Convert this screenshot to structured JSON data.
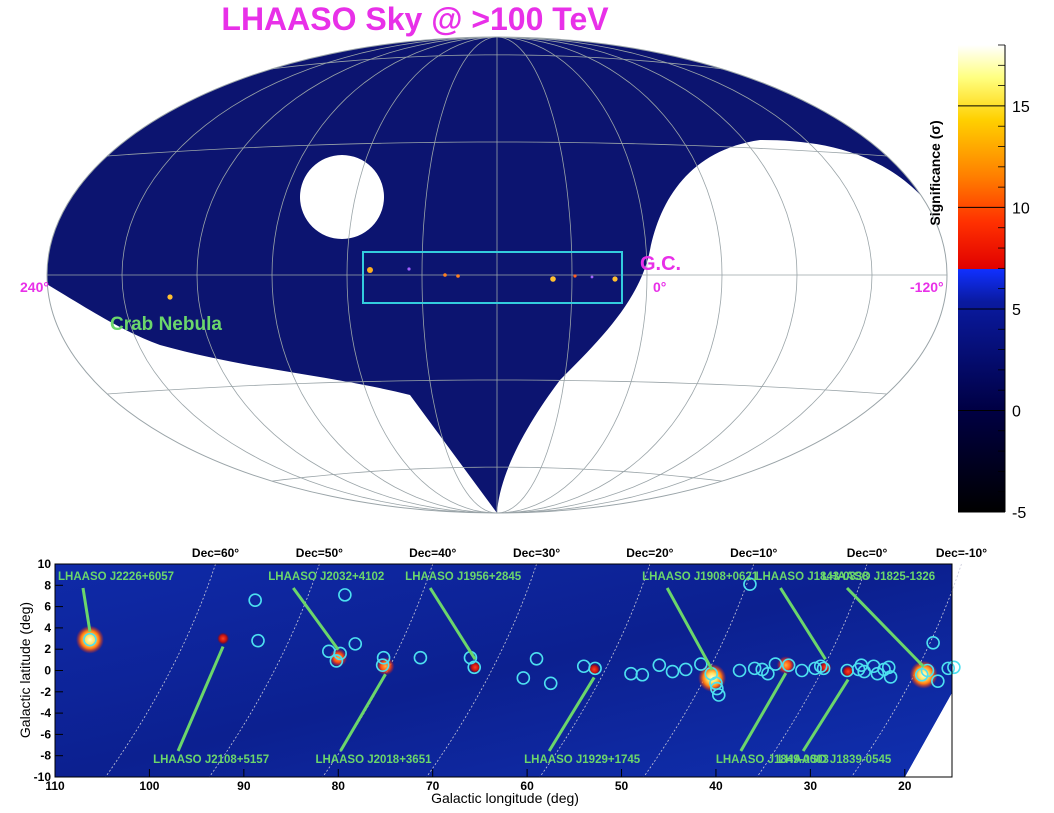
{
  "top_panel": {
    "title": "LHAASO Sky @ >100 TeV",
    "colors": {
      "title": "#e830e8",
      "sky_fill": "#0c1470",
      "excluded_fill": "#ffffff",
      "grid": "#9aa4a8",
      "box": "#33ccdd",
      "label_magenta": "#e830e8",
      "label_green": "#6bd66b"
    },
    "region_box_label": "G.C.",
    "longitude_labels": [
      "240°",
      "0°",
      "-120°"
    ],
    "source_label": "Crab Nebula",
    "colorbar": {
      "label": "Significance (σ)",
      "ticks": [
        -5,
        0,
        5,
        10,
        15
      ],
      "range": [
        -5,
        18
      ]
    }
  },
  "chart_data": {
    "type": "heatmap",
    "title": "",
    "xlabel": "Galactic longitude (deg)",
    "ylabel": "Galactic latitude (deg)",
    "xlim": [
      110,
      15
    ],
    "ylim": [
      -10,
      10
    ],
    "x_ticks": [
      110,
      100,
      90,
      80,
      70,
      60,
      50,
      40,
      30,
      20
    ],
    "y_ticks": [
      10,
      8,
      6,
      4,
      2,
      0,
      -2,
      -4,
      -6,
      -8,
      -10
    ],
    "declination_lines": [
      {
        "label": "Dec=60°",
        "x": 93
      },
      {
        "label": "Dec=50°",
        "x": 82
      },
      {
        "label": "Dec=40°",
        "x": 70
      },
      {
        "label": "Dec=30°",
        "x": 59
      },
      {
        "label": "Dec=20°",
        "x": 47
      },
      {
        "label": "Dec=10°",
        "x": 36
      },
      {
        "label": "Dec=0°",
        "x": 24
      },
      {
        "label": "Dec=-10°",
        "x": 14
      }
    ],
    "sources": [
      {
        "name": "LHAASO J2226+6057",
        "l": 106.3,
        "b": 2.9,
        "label_pos": "top"
      },
      {
        "name": "LHAASO J2108+5157",
        "l": 92.2,
        "b": 3.0,
        "label_pos": "bottom"
      },
      {
        "name": "LHAASO J2032+4102",
        "l": 80.0,
        "b": 1.2,
        "label_pos": "top"
      },
      {
        "name": "LHAASO J2018+3651",
        "l": 75.0,
        "b": 0.4,
        "label_pos": "bottom"
      },
      {
        "name": "LHAASO J1956+2845",
        "l": 65.5,
        "b": 0.3,
        "label_pos": "top"
      },
      {
        "name": "LHAASO J1929+1745",
        "l": 52.9,
        "b": 0.1,
        "label_pos": "bottom"
      },
      {
        "name": "LHAASO J1908+0621",
        "l": 40.4,
        "b": -0.7,
        "label_pos": "top"
      },
      {
        "name": "LHAASO J1849-0003",
        "l": 32.6,
        "b": 0.5,
        "label_pos": "bottom"
      },
      {
        "name": "LHAASO J1843-0338",
        "l": 28.4,
        "b": 0.3,
        "label_pos": "top"
      },
      {
        "name": "LHAASO J1839-0545",
        "l": 26.0,
        "b": -0.1,
        "label_pos": "bottom"
      },
      {
        "name": "LHAASO J1825-1326",
        "l": 18.0,
        "b": -0.4,
        "label_pos": "top"
      }
    ],
    "catalog_circles": [
      [
        106.3,
        2.9
      ],
      [
        88.8,
        6.6
      ],
      [
        88.5,
        2.8
      ],
      [
        79.3,
        7.1
      ],
      [
        81.0,
        1.8
      ],
      [
        79.8,
        1.6
      ],
      [
        80.2,
        0.9
      ],
      [
        78.2,
        2.5
      ],
      [
        75.2,
        1.2
      ],
      [
        75.3,
        0.5
      ],
      [
        71.3,
        1.2
      ],
      [
        66.0,
        1.2
      ],
      [
        65.6,
        0.3
      ],
      [
        60.4,
        -0.7
      ],
      [
        59.0,
        1.1
      ],
      [
        57.5,
        -1.2
      ],
      [
        54.0,
        0.4
      ],
      [
        52.8,
        0.2
      ],
      [
        49.0,
        -0.3
      ],
      [
        47.8,
        -0.4
      ],
      [
        46.0,
        0.5
      ],
      [
        44.6,
        -0.1
      ],
      [
        43.2,
        0.1
      ],
      [
        41.6,
        0.6
      ],
      [
        40.5,
        -0.3
      ],
      [
        40.0,
        -1.2
      ],
      [
        39.7,
        -2.3
      ],
      [
        39.9,
        -1.7
      ],
      [
        36.4,
        8.1
      ],
      [
        37.5,
        0.0
      ],
      [
        35.9,
        0.2
      ],
      [
        35.1,
        0.1
      ],
      [
        34.5,
        -0.3
      ],
      [
        33.7,
        0.6
      ],
      [
        32.3,
        0.5
      ],
      [
        30.9,
        0.0
      ],
      [
        29.5,
        0.2
      ],
      [
        28.6,
        0.2
      ],
      [
        28.9,
        0.4
      ],
      [
        26.1,
        0.0
      ],
      [
        24.9,
        0.1
      ],
      [
        24.6,
        0.5
      ],
      [
        24.3,
        -0.1
      ],
      [
        23.3,
        0.4
      ],
      [
        22.2,
        0.1
      ],
      [
        22.9,
        -0.3
      ],
      [
        21.7,
        0.3
      ],
      [
        21.5,
        -0.6
      ],
      [
        18.2,
        -0.4
      ],
      [
        17.6,
        0.0
      ],
      [
        17.0,
        2.6
      ],
      [
        16.5,
        -1.0
      ],
      [
        15.4,
        0.2
      ],
      [
        14.8,
        0.3
      ]
    ]
  }
}
